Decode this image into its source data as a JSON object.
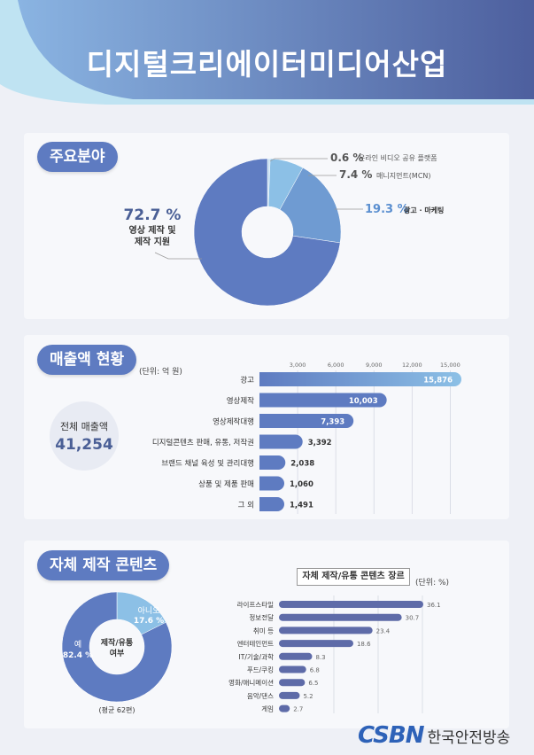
{
  "page": {
    "title": "디지털크리에이터미디어산업",
    "logo_mark": "CSBN",
    "logo_text": "한국안전방송"
  },
  "sections": {
    "fields": {
      "title": "주요분야"
    },
    "revenue": {
      "title": "매출액 현황",
      "unit": "(단위: 억 원)",
      "total_label": "전체 매출액",
      "total_value": "41,254"
    },
    "content": {
      "title": "자체 제작 콘텐츠",
      "donut_center": "제작/유통 여부",
      "avg_note": "(평균 62편)",
      "genre_title": "자체 제작/유통 콘텐츠 장르",
      "genre_unit": "(단위: %)"
    }
  },
  "colors": {
    "primary": "#5e7bc1",
    "dark": "#4a5f96",
    "light": "#8cc0e6",
    "mid": "#6f9bd2"
  },
  "chart_data": [
    {
      "type": "pie",
      "id": "fields",
      "slices": [
        {
          "label": "영상 제작 및 제작 지원",
          "value": 72.7,
          "value_text": "72.7 %",
          "color": "#5e7bc1"
        },
        {
          "label": "온라인 비디오 공유 플랫폼",
          "value": 0.6,
          "value_text": "0.6 %",
          "color": "#c3ddf1"
        },
        {
          "label": "매니지먼트(MCN)",
          "value": 7.4,
          "value_text": "7.4 %",
          "color": "#8cc0e6"
        },
        {
          "label": "광고 · 마케팅",
          "value": 19.3,
          "value_text": "19.3 %",
          "color": "#6f9bd2"
        }
      ]
    },
    {
      "type": "bar",
      "id": "revenue",
      "orientation": "horizontal",
      "ticks": [
        "3,000",
        "6,000",
        "9,000",
        "12,000",
        "15,000"
      ],
      "tick_values": [
        3000,
        6000,
        9000,
        12000,
        15000
      ],
      "categories": [
        "광고",
        "영상제작",
        "영상제작대행",
        "디지털콘텐츠 판매, 유통, 저작권",
        "브랜드 채널 육성 및 관리대행",
        "상품 및 제품 판매",
        "그 외"
      ],
      "values": [
        15876,
        10003,
        7393,
        3392,
        2038,
        1060,
        1491
      ],
      "labels": [
        "15,876",
        "10,003",
        "7,393",
        "3,392",
        "2,038",
        "1,060",
        "1,491"
      ]
    },
    {
      "type": "pie",
      "id": "production",
      "slices": [
        {
          "label": "예",
          "value": 82.4,
          "value_text": "82.4 %",
          "color": "#5e7bc1"
        },
        {
          "label": "아니오",
          "value": 17.6,
          "value_text": "17.6 %",
          "color": "#8cc0e6"
        }
      ]
    },
    {
      "type": "bar",
      "id": "genres",
      "orientation": "horizontal",
      "categories": [
        "라이프스타일",
        "정보전달",
        "취미 등",
        "엔터테인먼트",
        "IT/기술/과학",
        "푸드/쿠킹",
        "영화/애니메이션",
        "음악/댄스",
        "게임"
      ],
      "values": [
        36.1,
        30.7,
        23.4,
        18.6,
        8.3,
        6.8,
        6.5,
        5.2,
        2.7
      ],
      "labels": [
        "36.1",
        "30.7",
        "23.4",
        "18.6",
        "8.3",
        "6.8",
        "6.5",
        "5.2",
        "2.7"
      ]
    }
  ]
}
